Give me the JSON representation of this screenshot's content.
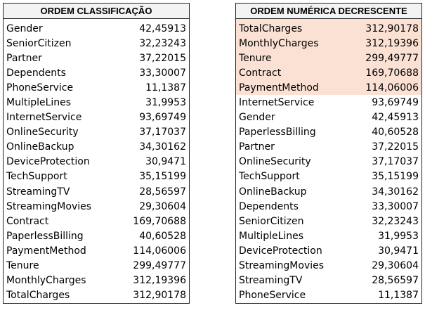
{
  "left_table": {
    "title": "ORDEM CLASSIFICAÇÃO",
    "rows": [
      {
        "name": "Gender",
        "value": "42,45913"
      },
      {
        "name": "SeniorCitizen",
        "value": "32,23243"
      },
      {
        "name": "Partner",
        "value": "37,22015"
      },
      {
        "name": "Dependents",
        "value": "33,30007"
      },
      {
        "name": "PhoneService",
        "value": "11,1387"
      },
      {
        "name": "MultipleLines",
        "value": "31,9953"
      },
      {
        "name": "InternetService",
        "value": "93,69749"
      },
      {
        "name": "OnlineSecurity",
        "value": "37,17037"
      },
      {
        "name": "OnlineBackup",
        "value": "34,30162"
      },
      {
        "name": "DeviceProtection",
        "value": "30,9471"
      },
      {
        "name": "TechSupport",
        "value": "35,15199"
      },
      {
        "name": "StreamingTV",
        "value": "28,56597"
      },
      {
        "name": "StreamingMovies",
        "value": "29,30604"
      },
      {
        "name": "Contract",
        "value": "169,70688"
      },
      {
        "name": "PaperlessBilling",
        "value": "40,60528"
      },
      {
        "name": "PaymentMethod",
        "value": "114,06006"
      },
      {
        "name": "Tenure",
        "value": "299,49777"
      },
      {
        "name": "MonthlyCharges",
        "value": "312,19396"
      },
      {
        "name": "TotalCharges",
        "value": "312,90178"
      }
    ]
  },
  "right_table": {
    "title": "ORDEM NUMÉRICA DECRESCENTE",
    "highlight_color": "#fbe1d3",
    "highlighted_count": 5,
    "rows": [
      {
        "name": "TotalCharges",
        "value": "312,90178"
      },
      {
        "name": "MonthlyCharges",
        "value": "312,19396"
      },
      {
        "name": "Tenure",
        "value": "299,49777"
      },
      {
        "name": "Contract",
        "value": "169,70688"
      },
      {
        "name": "PaymentMethod",
        "value": "114,06006"
      },
      {
        "name": "InternetService",
        "value": "93,69749"
      },
      {
        "name": "Gender",
        "value": "42,45913"
      },
      {
        "name": "PaperlessBilling",
        "value": "40,60528"
      },
      {
        "name": "Partner",
        "value": "37,22015"
      },
      {
        "name": "OnlineSecurity",
        "value": "37,17037"
      },
      {
        "name": "TechSupport",
        "value": "35,15199"
      },
      {
        "name": "OnlineBackup",
        "value": "34,30162"
      },
      {
        "name": "Dependents",
        "value": "33,30007"
      },
      {
        "name": "SeniorCitizen",
        "value": "32,23243"
      },
      {
        "name": "MultipleLines",
        "value": "31,9953"
      },
      {
        "name": "DeviceProtection",
        "value": "30,9471"
      },
      {
        "name": "StreamingMovies",
        "value": "29,30604"
      },
      {
        "name": "StreamingTV",
        "value": "28,56597"
      },
      {
        "name": "PhoneService",
        "value": "11,1387"
      }
    ]
  }
}
